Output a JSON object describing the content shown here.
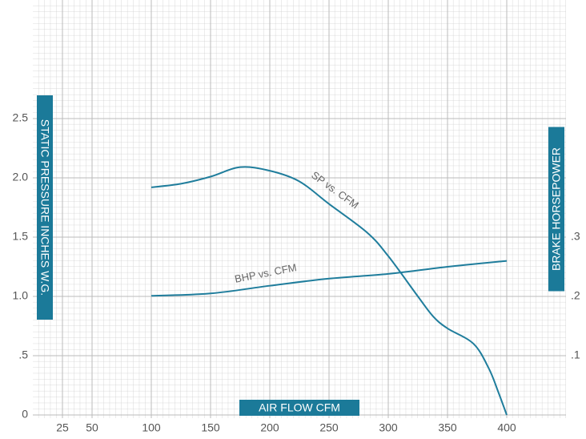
{
  "chart_data": {
    "type": "line",
    "x_label": "AIR FLOW CFM",
    "y_label": "STATIC PRESSURE INCHES W.G.",
    "y2_label": "BRAKE HORSEPOWER",
    "xlim": [
      0,
      450
    ],
    "xticks": [
      25,
      50,
      100,
      150,
      200,
      250,
      300,
      350,
      400
    ],
    "ylim": [
      0,
      3.5
    ],
    "yticks": [
      0,
      {
        "value": 0.5,
        "label": ".5"
      },
      {
        "value": 1.0,
        "label": "1.0"
      },
      1.5,
      {
        "value": 2.0,
        "label": "2.0"
      },
      2.5
    ],
    "y2lim": [
      0,
      0.7
    ],
    "y2ticks": [
      {
        "value": 0.1,
        "label": ".1"
      },
      {
        "value": 0.2,
        "label": ".2"
      },
      {
        "value": 0.3,
        "label": ".3"
      }
    ],
    "grid": true,
    "series": [
      {
        "name": "SP vs. CFM",
        "color": "#1f7d9c",
        "x": [
          100,
          125,
          150,
          175,
          200,
          225,
          250,
          282,
          300,
          325,
          338,
          350,
          372,
          385,
          393,
          400
        ],
        "values": [
          1.92,
          1.95,
          2.01,
          2.09,
          2.06,
          1.97,
          1.78,
          1.54,
          1.34,
          1.0,
          0.83,
          0.73,
          0.6,
          0.39,
          0.19,
          0
        ]
      },
      {
        "name": "BHP vs. CFM",
        "color": "#1f7d9c",
        "axis": "y2",
        "x": [
          100,
          150,
          200,
          250,
          300,
          350,
          400
        ],
        "values": [
          0.201,
          0.205,
          0.218,
          0.23,
          0.238,
          0.25,
          0.26
        ]
      }
    ]
  }
}
